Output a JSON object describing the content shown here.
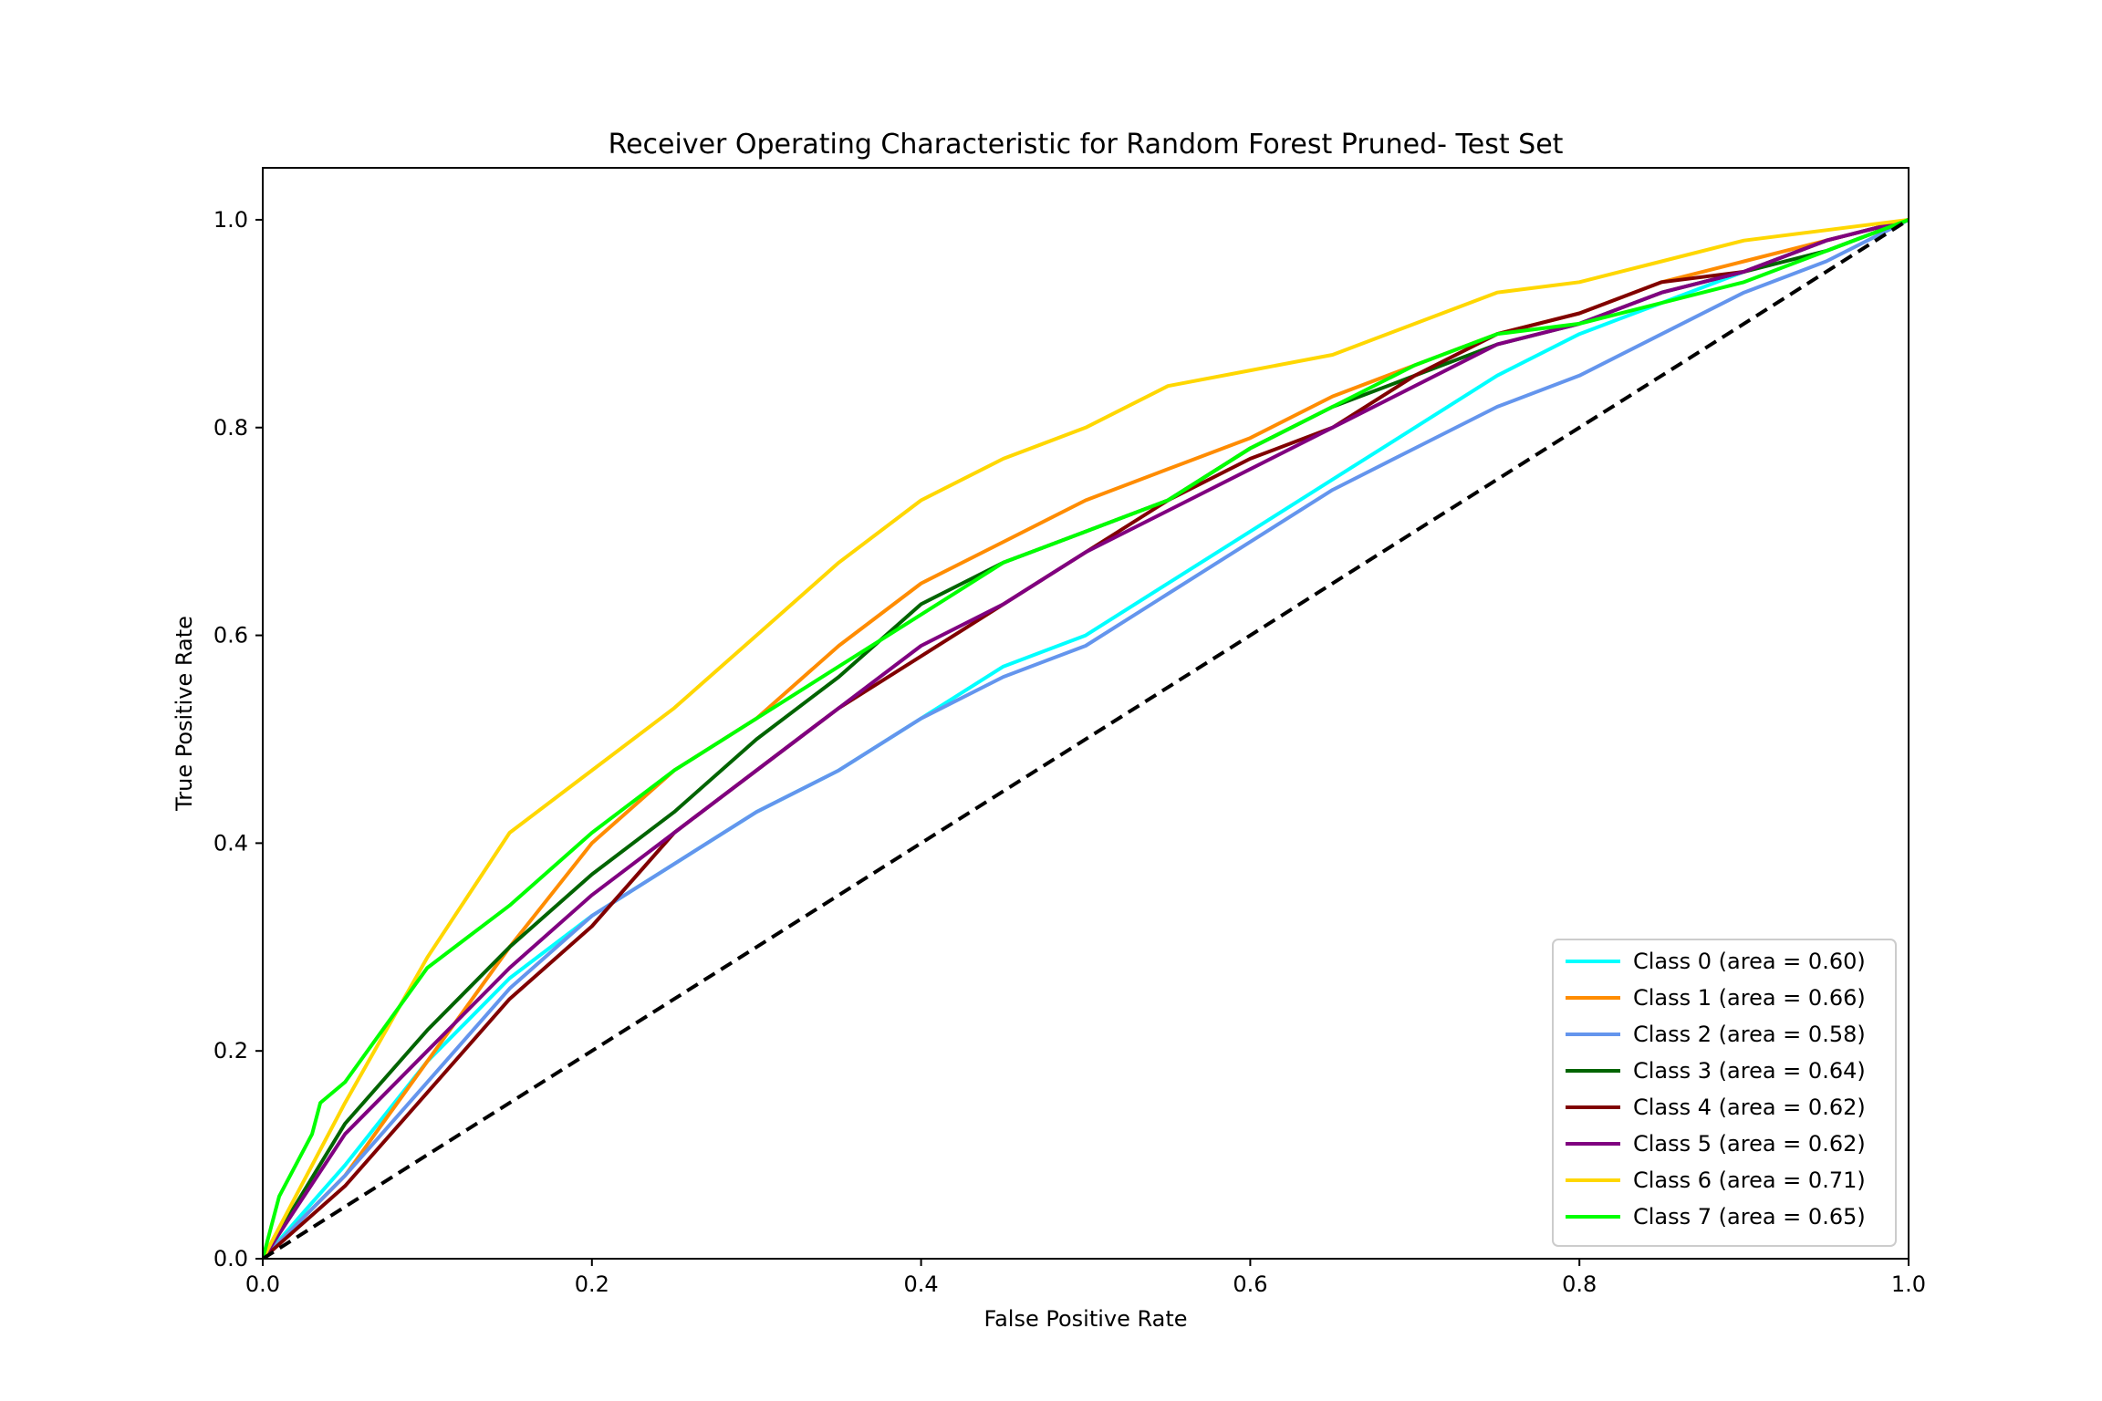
{
  "chart_data": {
    "type": "line",
    "title": "Receiver Operating Characteristic for Random Forest Pruned- Test Set",
    "xlabel": "False Positive Rate",
    "ylabel": "True Positive Rate",
    "xlim": [
      0.0,
      1.0
    ],
    "ylim": [
      0.0,
      1.05
    ],
    "xticks": [
      "0.0",
      "0.2",
      "0.4",
      "0.6",
      "0.8",
      "1.0"
    ],
    "yticks": [
      "0.0",
      "0.2",
      "0.4",
      "0.6",
      "0.8",
      "1.0"
    ],
    "grid": false,
    "legend_position": "lower-right",
    "diagonal": {
      "points": [
        [
          0,
          0
        ],
        [
          1,
          1
        ]
      ],
      "color": "#000000",
      "style": "dashed"
    },
    "series": [
      {
        "name": "Class 0 (area = 0.60)",
        "color": "#00ffff",
        "points": [
          [
            0,
            0
          ],
          [
            0.05,
            0.09
          ],
          [
            0.1,
            0.19
          ],
          [
            0.15,
            0.27
          ],
          [
            0.2,
            0.33
          ],
          [
            0.25,
            0.38
          ],
          [
            0.3,
            0.43
          ],
          [
            0.35,
            0.47
          ],
          [
            0.4,
            0.52
          ],
          [
            0.45,
            0.57
          ],
          [
            0.5,
            0.6
          ],
          [
            0.55,
            0.65
          ],
          [
            0.6,
            0.7
          ],
          [
            0.65,
            0.75
          ],
          [
            0.7,
            0.8
          ],
          [
            0.75,
            0.85
          ],
          [
            0.8,
            0.89
          ],
          [
            0.85,
            0.92
          ],
          [
            0.9,
            0.95
          ],
          [
            0.95,
            0.98
          ],
          [
            1,
            1
          ]
        ]
      },
      {
        "name": "Class 1 (area = 0.66)",
        "color": "#ff8c00",
        "points": [
          [
            0,
            0
          ],
          [
            0.05,
            0.08
          ],
          [
            0.1,
            0.19
          ],
          [
            0.15,
            0.3
          ],
          [
            0.2,
            0.4
          ],
          [
            0.25,
            0.47
          ],
          [
            0.3,
            0.52
          ],
          [
            0.35,
            0.59
          ],
          [
            0.4,
            0.65
          ],
          [
            0.45,
            0.69
          ],
          [
            0.5,
            0.73
          ],
          [
            0.55,
            0.76
          ],
          [
            0.6,
            0.79
          ],
          [
            0.65,
            0.83
          ],
          [
            0.7,
            0.86
          ],
          [
            0.75,
            0.89
          ],
          [
            0.8,
            0.91
          ],
          [
            0.85,
            0.94
          ],
          [
            0.9,
            0.96
          ],
          [
            0.95,
            0.98
          ],
          [
            1,
            1
          ]
        ]
      },
      {
        "name": "Class 2 (area = 0.58)",
        "color": "#6495ed",
        "points": [
          [
            0,
            0
          ],
          [
            0.05,
            0.08
          ],
          [
            0.1,
            0.17
          ],
          [
            0.15,
            0.26
          ],
          [
            0.2,
            0.33
          ],
          [
            0.25,
            0.38
          ],
          [
            0.3,
            0.43
          ],
          [
            0.35,
            0.47
          ],
          [
            0.4,
            0.52
          ],
          [
            0.45,
            0.56
          ],
          [
            0.5,
            0.59
          ],
          [
            0.55,
            0.64
          ],
          [
            0.6,
            0.69
          ],
          [
            0.65,
            0.74
          ],
          [
            0.7,
            0.78
          ],
          [
            0.75,
            0.82
          ],
          [
            0.8,
            0.85
          ],
          [
            0.85,
            0.89
          ],
          [
            0.9,
            0.93
          ],
          [
            0.95,
            0.96
          ],
          [
            1,
            1
          ]
        ]
      },
      {
        "name": "Class 3 (area = 0.64)",
        "color": "#006400",
        "points": [
          [
            0,
            0
          ],
          [
            0.05,
            0.13
          ],
          [
            0.1,
            0.22
          ],
          [
            0.15,
            0.3
          ],
          [
            0.2,
            0.37
          ],
          [
            0.25,
            0.43
          ],
          [
            0.3,
            0.5
          ],
          [
            0.35,
            0.56
          ],
          [
            0.4,
            0.63
          ],
          [
            0.45,
            0.67
          ],
          [
            0.5,
            0.7
          ],
          [
            0.55,
            0.73
          ],
          [
            0.6,
            0.78
          ],
          [
            0.65,
            0.82
          ],
          [
            0.7,
            0.85
          ],
          [
            0.75,
            0.88
          ],
          [
            0.8,
            0.9
          ],
          [
            0.85,
            0.93
          ],
          [
            0.9,
            0.95
          ],
          [
            0.95,
            0.97
          ],
          [
            1,
            1
          ]
        ]
      },
      {
        "name": "Class 4 (area = 0.62)",
        "color": "#800000",
        "points": [
          [
            0,
            0
          ],
          [
            0.05,
            0.07
          ],
          [
            0.1,
            0.16
          ],
          [
            0.15,
            0.25
          ],
          [
            0.2,
            0.32
          ],
          [
            0.25,
            0.41
          ],
          [
            0.3,
            0.47
          ],
          [
            0.35,
            0.53
          ],
          [
            0.4,
            0.58
          ],
          [
            0.45,
            0.63
          ],
          [
            0.5,
            0.68
          ],
          [
            0.55,
            0.73
          ],
          [
            0.6,
            0.77
          ],
          [
            0.65,
            0.8
          ],
          [
            0.7,
            0.85
          ],
          [
            0.75,
            0.89
          ],
          [
            0.8,
            0.91
          ],
          [
            0.85,
            0.94
          ],
          [
            0.9,
            0.95
          ],
          [
            0.95,
            0.98
          ],
          [
            1,
            1
          ]
        ]
      },
      {
        "name": "Class 5 (area = 0.62)",
        "color": "#800080",
        "points": [
          [
            0,
            0
          ],
          [
            0.05,
            0.12
          ],
          [
            0.1,
            0.2
          ],
          [
            0.15,
            0.28
          ],
          [
            0.2,
            0.35
          ],
          [
            0.25,
            0.41
          ],
          [
            0.3,
            0.47
          ],
          [
            0.35,
            0.53
          ],
          [
            0.4,
            0.59
          ],
          [
            0.45,
            0.63
          ],
          [
            0.5,
            0.68
          ],
          [
            0.55,
            0.72
          ],
          [
            0.6,
            0.76
          ],
          [
            0.65,
            0.8
          ],
          [
            0.7,
            0.84
          ],
          [
            0.75,
            0.88
          ],
          [
            0.8,
            0.9
          ],
          [
            0.85,
            0.93
          ],
          [
            0.9,
            0.95
          ],
          [
            0.95,
            0.98
          ],
          [
            1,
            1
          ]
        ]
      },
      {
        "name": "Class 6 (area = 0.71)",
        "color": "#ffd700",
        "points": [
          [
            0,
            0
          ],
          [
            0.05,
            0.15
          ],
          [
            0.1,
            0.29
          ],
          [
            0.15,
            0.41
          ],
          [
            0.2,
            0.47
          ],
          [
            0.25,
            0.53
          ],
          [
            0.3,
            0.6
          ],
          [
            0.35,
            0.67
          ],
          [
            0.4,
            0.73
          ],
          [
            0.45,
            0.77
          ],
          [
            0.5,
            0.8
          ],
          [
            0.55,
            0.84
          ],
          [
            0.6,
            0.855
          ],
          [
            0.65,
            0.87
          ],
          [
            0.7,
            0.9
          ],
          [
            0.75,
            0.93
          ],
          [
            0.8,
            0.94
          ],
          [
            0.85,
            0.96
          ],
          [
            0.9,
            0.98
          ],
          [
            0.95,
            0.99
          ],
          [
            1,
            1
          ]
        ]
      },
      {
        "name": "Class 7 (area = 0.65)",
        "color": "#00ff00",
        "points": [
          [
            0,
            0
          ],
          [
            0.01,
            0.06
          ],
          [
            0.03,
            0.12
          ],
          [
            0.035,
            0.15
          ],
          [
            0.05,
            0.17
          ],
          [
            0.1,
            0.28
          ],
          [
            0.15,
            0.34
          ],
          [
            0.2,
            0.41
          ],
          [
            0.25,
            0.47
          ],
          [
            0.3,
            0.52
          ],
          [
            0.35,
            0.57
          ],
          [
            0.4,
            0.62
          ],
          [
            0.45,
            0.67
          ],
          [
            0.5,
            0.7
          ],
          [
            0.55,
            0.73
          ],
          [
            0.6,
            0.78
          ],
          [
            0.65,
            0.82
          ],
          [
            0.7,
            0.86
          ],
          [
            0.75,
            0.89
          ],
          [
            0.8,
            0.9
          ],
          [
            0.85,
            0.92
          ],
          [
            0.9,
            0.94
          ],
          [
            0.95,
            0.97
          ],
          [
            1,
            1
          ]
        ]
      }
    ]
  }
}
